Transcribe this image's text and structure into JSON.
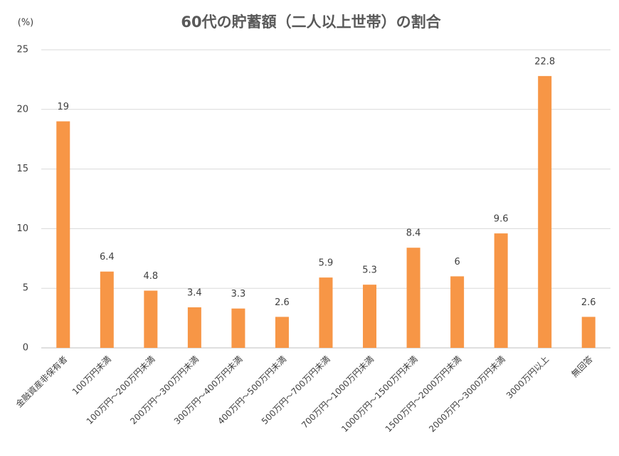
{
  "chart_data": {
    "type": "bar",
    "title": "60代の貯蓄額（二人以上世帯）の割合",
    "y_label": "(%)",
    "categories": [
      "金融資産非保有者",
      "100万円未満",
      "100万円～200万円未満",
      "200万円～300万円未満",
      "300万円～400万円未満",
      "400万円～500万円未満",
      "500万円～700万円未満",
      "700万円～1000万円未満",
      "1000万円～1500万円未満",
      "1500万円～2000万円未満",
      "2000万円～3000万円未満",
      "3000万円以上",
      "無回答"
    ],
    "values": [
      19,
      6.4,
      4.8,
      3.4,
      3.3,
      2.6,
      5.9,
      5.3,
      8.4,
      6,
      9.6,
      22.8,
      2.6
    ],
    "color": "#f79646",
    "ylim": [
      0,
      25
    ],
    "yticks": [
      0,
      5,
      10,
      15,
      20,
      25
    ],
    "grid": true
  }
}
